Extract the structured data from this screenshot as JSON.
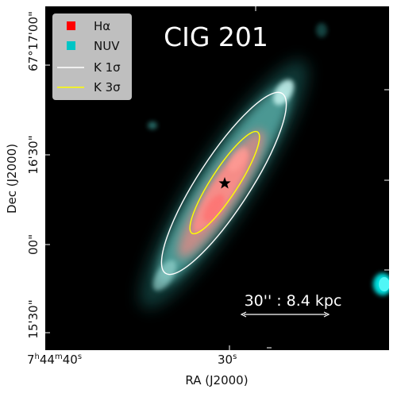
{
  "figure": {
    "title": "CIG 201",
    "x_axis": {
      "label": "RA (J2000)",
      "ticks": [
        {
          "h": "7",
          "m": "44",
          "s": "40",
          "kind": "hms"
        },
        {
          "s": "30",
          "kind": "s"
        }
      ]
    },
    "y_axis": {
      "label": "Dec (J2000)",
      "ticks": [
        "67°17'00\"",
        "16'30\"",
        "00\"",
        "15'30\""
      ]
    },
    "legend": {
      "placement": "top-left",
      "items": [
        {
          "label": "Hα",
          "kind": "square",
          "color": "#ff0000"
        },
        {
          "label": "NUV",
          "kind": "square",
          "color": "#00c5c5"
        },
        {
          "label": "K 1σ",
          "kind": "line",
          "color": "#ffffff"
        },
        {
          "label": "K 3σ",
          "kind": "line",
          "color": "#ffff00"
        }
      ]
    },
    "scale_bar": {
      "label": "30'' : 8.4 kpc"
    },
    "marker": {
      "shape": "star",
      "icon": "star-icon"
    }
  }
}
